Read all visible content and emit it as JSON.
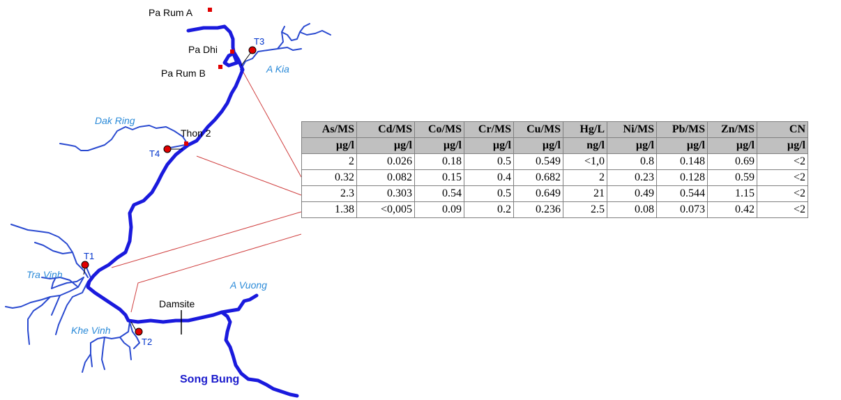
{
  "places": {
    "pa_rum_a": "Pa Rum A",
    "pa_dhi": "Pa Dhi",
    "pa_rum_b": "Pa Rum B",
    "thon_2": "Thon 2",
    "damsite": "Damsite"
  },
  "stations": {
    "t1": "T1",
    "t2": "T2",
    "t3": "T3",
    "t4": "T4"
  },
  "rivers": {
    "a_kia": "A Kia",
    "dak_ring": "Dak Ring",
    "tra_vinh": "Tra Vinh",
    "a_vuong": "A Vuong",
    "khe_vinh": "Khe Vinh",
    "song_bung": "Song Bung"
  },
  "colors": {
    "main_river": "#1a1add",
    "tributary": "#2a4ad0",
    "station_fill": "#e00000",
    "village_marker": "#e00000",
    "leader_line": "#d04040"
  },
  "table": {
    "headers": [
      "As/MS",
      "Cd/MS",
      "Co/MS",
      "Cr/MS",
      "Cu/MS",
      "Hg/L",
      "Ni/MS",
      "Pb/MS",
      "Zn/MS",
      "CN"
    ],
    "units": [
      "µg/l",
      "µg/l",
      "µg/l",
      "µg/l",
      "µg/l",
      "ng/l",
      "µg/l",
      "µg/l",
      "µg/l",
      "µg/l"
    ],
    "rows": [
      [
        "2",
        "0.026",
        "0.18",
        "0.5",
        "0.549",
        "<1,0",
        "0.8",
        "0.148",
        "0.69",
        "<2"
      ],
      [
        "0.32",
        "0.082",
        "0.15",
        "0.4",
        "0.682",
        "2",
        "0.23",
        "0.128",
        "0.59",
        "<2"
      ],
      [
        "2.3",
        "0.303",
        "0.54",
        "0.5",
        "0.649",
        "21",
        "0.49",
        "0.544",
        "1.15",
        "<2"
      ],
      [
        "1.38",
        "<0,005",
        "0.09",
        "0.2",
        "0.236",
        "2.5",
        "0.08",
        "0.073",
        "0.42",
        "<2"
      ]
    ]
  }
}
